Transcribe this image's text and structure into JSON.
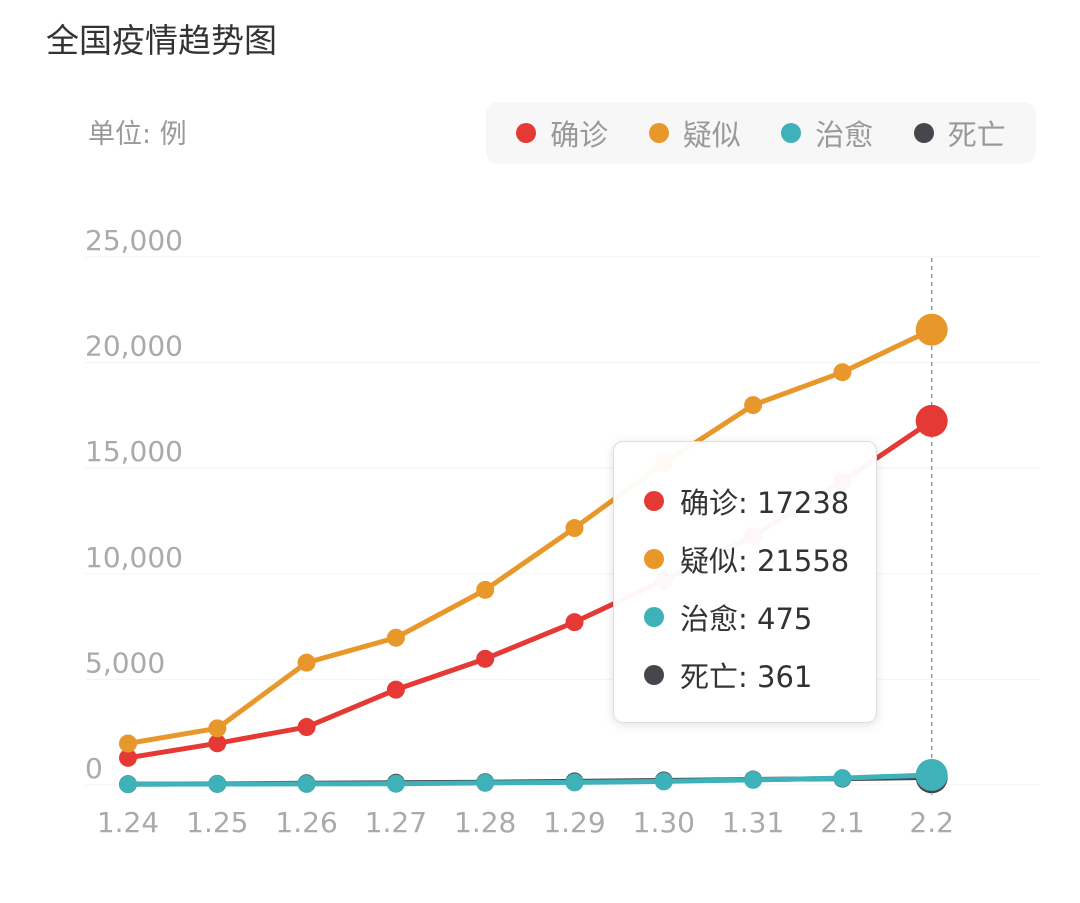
{
  "title": "全国疫情趋势图",
  "unit_label": "单位: 例",
  "tooltip": {
    "date": "2.2",
    "rows": [
      {
        "label": "确诊",
        "value": "17238"
      },
      {
        "label": "疑似",
        "value": "21558"
      },
      {
        "label": "治愈",
        "value": "475"
      },
      {
        "label": "死亡",
        "value": "361"
      }
    ]
  },
  "chart_data": {
    "type": "line",
    "title": "全国疫情趋势图",
    "ylabel": "单位: 例",
    "ylim": [
      0,
      25000
    ],
    "yticks": [
      0,
      5000,
      10000,
      15000,
      20000,
      25000
    ],
    "ytick_labels": [
      "0",
      "5,000",
      "10,000",
      "15,000",
      "20,000",
      "25,000"
    ],
    "categories": [
      "1.24",
      "1.25",
      "1.26",
      "1.27",
      "1.28",
      "1.29",
      "1.30",
      "1.31",
      "2.1",
      "2.2"
    ],
    "legend_position": "top-right",
    "series": [
      {
        "name": "确诊",
        "color": "#e53935",
        "values": [
          1287,
          1975,
          2744,
          4515,
          5974,
          7711,
          9692,
          11791,
          14380,
          17238
        ]
      },
      {
        "name": "疑似",
        "color": "#e8982a",
        "values": [
          1965,
          2684,
          5794,
          6973,
          9239,
          12167,
          15238,
          17988,
          19544,
          21558
        ]
      },
      {
        "name": "死亡",
        "color": "#45474c",
        "values": [
          41,
          56,
          80,
          106,
          132,
          170,
          213,
          259,
          304,
          361
        ]
      },
      {
        "name": "治愈",
        "color": "#3fb1b8",
        "values": [
          38,
          49,
          51,
          60,
          103,
          124,
          171,
          243,
          328,
          475
        ]
      }
    ]
  }
}
